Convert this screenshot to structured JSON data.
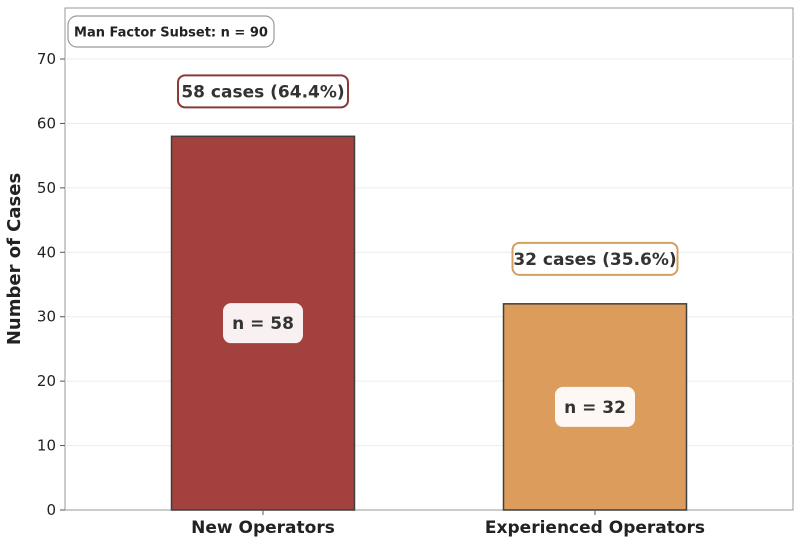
{
  "chart_data": {
    "type": "bar",
    "categories": [
      "New Operators",
      "Experienced Operators"
    ],
    "values": [
      58,
      32
    ],
    "ylabel": "Number of Cases",
    "xlabel": "",
    "ylim": [
      0,
      70
    ],
    "yticks": [
      0,
      10,
      20,
      30,
      40,
      50,
      60,
      70
    ],
    "grid": true,
    "bar_colors": [
      "#a2413d",
      "#dc9c5b"
    ],
    "callout_border_colors": [
      "#8a3a37",
      "#d4a060"
    ],
    "callouts": [
      "58 cases (64.4%)",
      "32 cases (35.6%)"
    ],
    "n_labels": [
      "n = 58",
      "n = 32"
    ],
    "annotation": "Man Factor Subset: n = 90"
  }
}
